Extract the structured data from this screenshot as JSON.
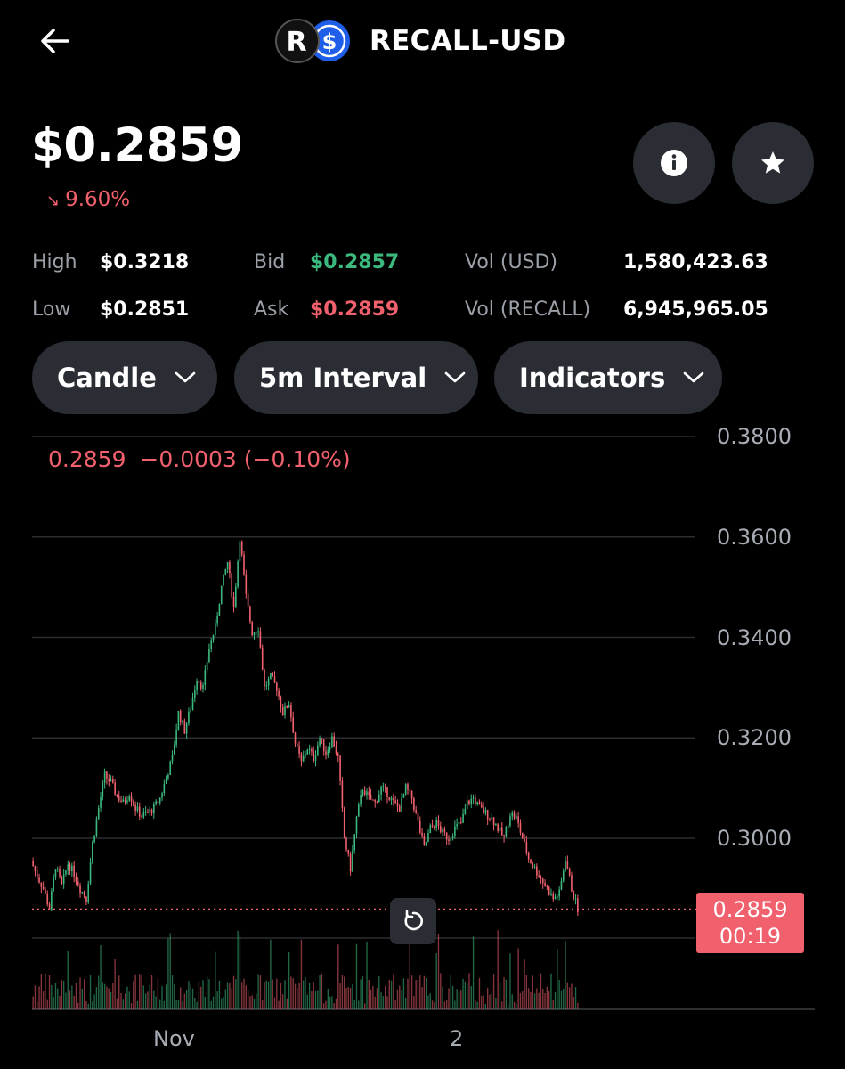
{
  "header": {
    "title": "RECALL-USD",
    "back_icon": "arrow-left-icon",
    "logo": "recall-usd-pair-logo"
  },
  "summary": {
    "price": "$0.2859",
    "change_pct": "9.60%",
    "change_direction": "down",
    "info_icon": "info-icon",
    "star_icon": "star-icon"
  },
  "stats": {
    "high_label": "High",
    "high_value": "$0.3218",
    "low_label": "Low",
    "low_value": "$0.2851",
    "bid_label": "Bid",
    "bid_value": "$0.2857",
    "ask_label": "Ask",
    "ask_value": "$0.2859",
    "vol_usd_label": "Vol (USD)",
    "vol_usd_value": "1,580,423.63",
    "vol_recall_label": "Vol (RECALL)",
    "vol_recall_value": "6,945,965.05"
  },
  "controls": {
    "chart_type": "Candle",
    "interval": "5m Interval",
    "indicators": "Indicators"
  },
  "chart_data": {
    "type": "candlestick",
    "ohlc_readout": {
      "last": "0.2859",
      "change": "−0.0003",
      "change_pct": "(−0.10%)"
    },
    "y_ticks": [
      "0.3800",
      "0.3600",
      "0.3400",
      "0.3200",
      "0.3000"
    ],
    "ylim": [
      0.279,
      0.38
    ],
    "x_ticks": [
      "Nov",
      "2"
    ],
    "last_price_tag": {
      "price": "0.2859",
      "countdown": "00:19"
    },
    "close_path": [
      0.2955,
      0.2925,
      0.29,
      0.286,
      0.2945,
      0.2905,
      0.295,
      0.293,
      0.29,
      0.288,
      0.299,
      0.306,
      0.3125,
      0.311,
      0.3085,
      0.307,
      0.309,
      0.306,
      0.3045,
      0.305,
      0.306,
      0.308,
      0.312,
      0.316,
      0.325,
      0.3215,
      0.326,
      0.332,
      0.33,
      0.338,
      0.342,
      0.35,
      0.355,
      0.346,
      0.36,
      0.348,
      0.341,
      0.342,
      0.33,
      0.332,
      0.33,
      0.325,
      0.327,
      0.319,
      0.315,
      0.318,
      0.316,
      0.32,
      0.317,
      0.32,
      0.316,
      0.3,
      0.294,
      0.304,
      0.31,
      0.308,
      0.307,
      0.31,
      0.309,
      0.307,
      0.306,
      0.31,
      0.308,
      0.303,
      0.298,
      0.302,
      0.303,
      0.301,
      0.3,
      0.302,
      0.303,
      0.307,
      0.308,
      0.306,
      0.305,
      0.304,
      0.302,
      0.3,
      0.305,
      0.304,
      0.3,
      0.296,
      0.294,
      0.292,
      0.29,
      0.288,
      0.289,
      0.296,
      0.29,
      0.2859
    ]
  },
  "colors": {
    "up": "#3cb97e",
    "down": "#f0616d",
    "background": "#000000",
    "pill": "#2a2d33",
    "grid": "#2b2d31"
  },
  "reset_icon": "refresh-icon"
}
